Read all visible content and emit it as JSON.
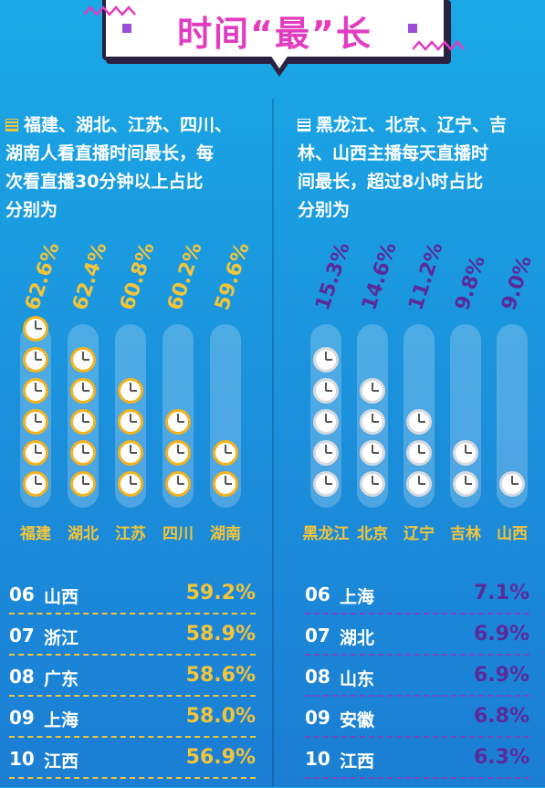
{
  "title": "时间“最”长",
  "colors": {
    "gold": "#f3c53a",
    "purple": "#5a2a9c",
    "ruleGold": "#f3c53a",
    "rulePurple": "#7a47c4"
  },
  "left": {
    "description": [
      "福建、湖北、江苏、四川、",
      "湖南人看直播时间最长，每",
      "次看直播30分钟以上占比",
      "分别为"
    ],
    "chart_data": {
      "type": "bar",
      "categories": [
        "福建",
        "湖北",
        "江苏",
        "四川",
        "湖南"
      ],
      "values": [
        62.6,
        62.4,
        60.8,
        60.2,
        59.6
      ],
      "labels": [
        "62.6%",
        "62.4%",
        "60.8%",
        "60.2%",
        "59.6%"
      ],
      "clock_counts": [
        6,
        5,
        4,
        3,
        2
      ]
    },
    "ranks": [
      {
        "num": "06",
        "name": "山西",
        "value": "59.2%"
      },
      {
        "num": "07",
        "name": "浙江",
        "value": "58.9%"
      },
      {
        "num": "08",
        "name": "广东",
        "value": "58.6%"
      },
      {
        "num": "09",
        "name": "上海",
        "value": "58.0%"
      },
      {
        "num": "10",
        "name": "江西",
        "value": "56.9%"
      }
    ]
  },
  "right": {
    "description": [
      "黑龙江、北京、辽宁、吉",
      "林、山西主播每天直播时",
      "间最长，超过8小时占比",
      "分别为"
    ],
    "chart_data": {
      "type": "bar",
      "categories": [
        "黑龙江",
        "北京",
        "辽宁",
        "吉林",
        "山西"
      ],
      "values": [
        15.3,
        14.6,
        11.2,
        9.8,
        9.0
      ],
      "labels": [
        "15.3%",
        "14.6%",
        "11.2%",
        "9.8%",
        "9.0%"
      ],
      "clock_counts": [
        5,
        4,
        3,
        2,
        1
      ]
    },
    "ranks": [
      {
        "num": "06",
        "name": "上海",
        "value": "7.1%"
      },
      {
        "num": "07",
        "name": "湖北",
        "value": "6.9%"
      },
      {
        "num": "08",
        "name": "山东",
        "value": "6.9%"
      },
      {
        "num": "09",
        "name": "安徽",
        "value": "6.8%"
      },
      {
        "num": "10",
        "name": "江西",
        "value": "6.3%"
      }
    ]
  }
}
